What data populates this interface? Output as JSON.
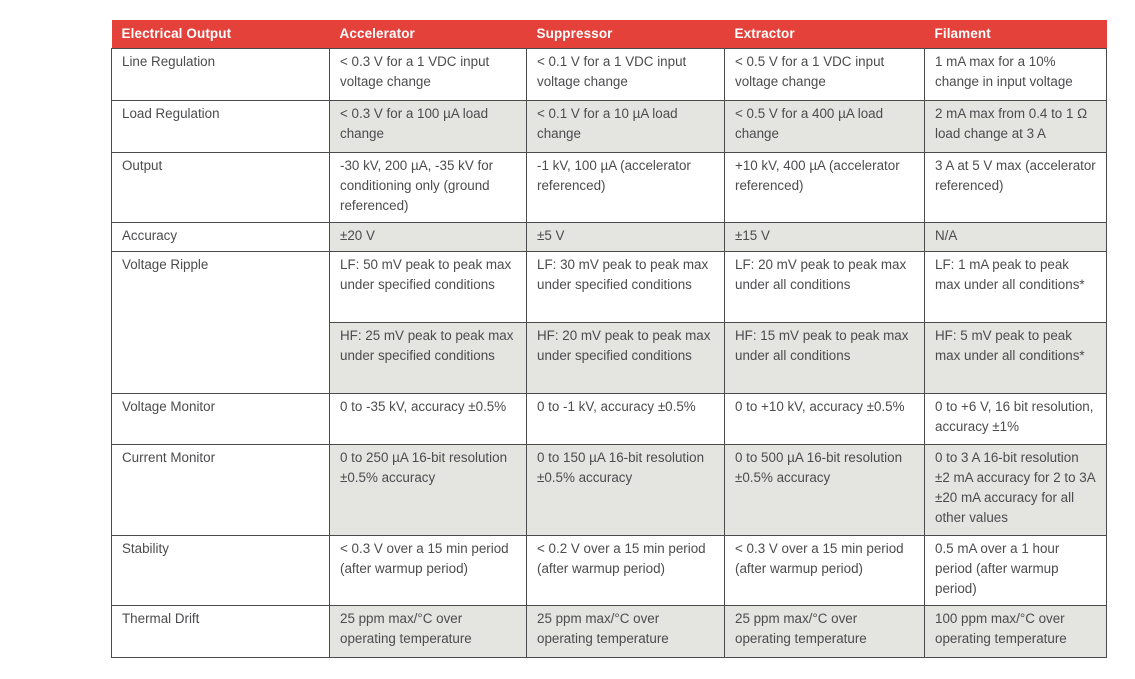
{
  "table": {
    "columns": [
      "Electrical Output",
      "Accelerator",
      "Suppressor",
      "Extractor",
      "Filament"
    ],
    "rows": [
      {
        "label": "Line Regulation",
        "values": [
          "< 0.3 V for a 1 VDC input voltage change",
          "< 0.1 V for a 1 VDC input voltage change",
          "< 0.5 V for a 1 VDC input voltage change",
          "1 mA max for a 10% change in input voltage"
        ]
      },
      {
        "label": "Load Regulation",
        "values": [
          "< 0.3 V for a 100 µA load change",
          "< 0.1 V for a 10 µA load change",
          "< 0.5 V for a 400 µA load change",
          "2 mA max from 0.4 to 1 Ω load change at 3 A"
        ]
      },
      {
        "label": "Output",
        "values": [
          "-30 kV, 200 µA, -35 kV for conditioning only (ground referenced)",
          "-1 kV, 100 µA (accelerator referenced)",
          "+10 kV, 400 µA (accelerator referenced)",
          "3 A at 5 V max (accelerator referenced)"
        ]
      },
      {
        "label": "Accuracy",
        "values": [
          "±20 V",
          "±5 V",
          "±15 V",
          "N/A"
        ]
      },
      {
        "label": "Voltage Ripple",
        "subrows": [
          {
            "values": [
              "LF: 50 mV peak to peak max under specified conditions",
              "LF: 30 mV peak to peak max under specified conditions",
              "LF: 20 mV peak to peak max under all conditions",
              "LF: 1 mA peak to peak max under all conditions*"
            ]
          },
          {
            "values": [
              "HF: 25 mV peak to peak max under specified conditions",
              "HF: 20 mV peak to peak max under specified conditions",
              "HF: 15 mV peak to peak max under all conditions",
              "HF: 5 mV peak to peak max under all conditions*"
            ]
          }
        ]
      },
      {
        "label": "Voltage Monitor",
        "values": [
          "0 to -35 kV, accuracy ±0.5%",
          "0 to -1 kV, accuracy ±0.5%",
          "0 to +10 kV, accuracy ±0.5%",
          "0 to +6 V, 16 bit resolution, accuracy ±1%"
        ]
      },
      {
        "label": "Current Monitor",
        "values": [
          "0 to 250 µA 16-bit resolution ±0.5% accuracy",
          "0 to 150 µA 16-bit resolution ±0.5% accuracy",
          "0 to 500 µA 16-bit resolution ±0.5% accuracy",
          "0 to 3 A 16-bit resolution ±2 mA accuracy for 2 to 3A ±20 mA accuracy for all other values"
        ]
      },
      {
        "label": "Stability",
        "values": [
          "< 0.3 V over a 15 min period (after warmup period)",
          "< 0.2 V over a 15 min period (after warmup period)",
          "< 0.3 V over a 15 min period (after warmup period)",
          "0.5 mA over a 1 hour period (after warmup period)"
        ]
      },
      {
        "label": "Thermal Drift",
        "values": [
          "25 ppm max/°C over operating temperature",
          "25 ppm max/°C over operating temperature",
          "25 ppm max/°C over operating temperature",
          "100 ppm max/°C over operating temperature"
        ]
      }
    ]
  },
  "colors": {
    "header_bg": "#e5413b",
    "header_text": "#ffffff",
    "shaded_row_bg": "#e4e4e0",
    "row_bg": "#ffffff",
    "border": "#4b4b4d",
    "body_text": "#4c4c4f"
  }
}
